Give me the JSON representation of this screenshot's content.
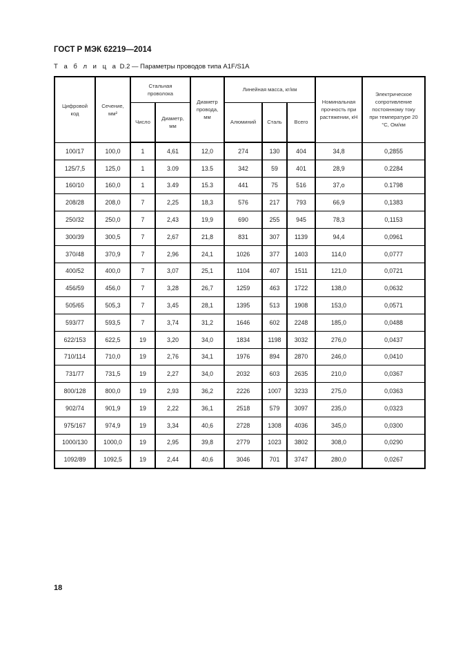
{
  "header": {
    "doc_title": "ГОСТ Р МЭК 62219—2014"
  },
  "caption": {
    "prefix": "Т а б л и ц а",
    "text": " D.2 — Параметры проводов типа A1F/S1A"
  },
  "table": {
    "headers": {
      "code": "Цифровой код",
      "section": "Сечение, мм²",
      "steel_wire": "Стальная проволока",
      "steel_count": "Число",
      "steel_diameter": "Диаметр, мм",
      "wire_diameter": "Диаметр провода, мм",
      "linear_mass": "Линейная масса, кг/км",
      "mass_aluminum": "Алюминий",
      "mass_steel": "Сталь",
      "mass_total": "Всего",
      "strength": "Номинальная прочность при растяжении, кН",
      "resistance": "Электрическое сопротивление постоянному току при температуре 20 °С, Ом/км"
    },
    "rows": [
      [
        "100/17",
        "100,0",
        "1",
        "4,61",
        "12,0",
        "274",
        "130",
        "404",
        "34,8",
        "0,2855"
      ],
      [
        "125/7,5",
        "125,0",
        "1",
        "3.09",
        "13.5",
        "342",
        "59",
        "401",
        "28,9",
        "0.2284"
      ],
      [
        "160/10",
        "160,0",
        "1",
        "3.49",
        "15.3",
        "441",
        "75",
        "516",
        "37,o",
        "0.1798"
      ],
      [
        "208/28",
        "208,0",
        "7",
        "2,25",
        "18,3",
        "576",
        "217",
        "793",
        "66,9",
        "0,1383"
      ],
      [
        "250/32",
        "250,0",
        "7",
        "2,43",
        "19,9",
        "690",
        "255",
        "945",
        "78,3",
        "0,1153"
      ],
      [
        "300/39",
        "300,5",
        "7",
        "2,67",
        "21,8",
        "831",
        "307",
        "1139",
        "94,4",
        "0,0961"
      ],
      [
        "370/48",
        "370,9",
        "7",
        "2,96",
        "24,1",
        "1026",
        "377",
        "1403",
        "114,0",
        "0,0777"
      ],
      [
        "400/52",
        "400,0",
        "7",
        "3,07",
        "25,1",
        "1104",
        "407",
        "1511",
        "121,0",
        "0,0721"
      ],
      [
        "456/59",
        "456,0",
        "7",
        "3,28",
        "26,7",
        "1259",
        "463",
        "1722",
        "138,0",
        "0,0632"
      ],
      [
        "505/65",
        "505,3",
        "7",
        "3,45",
        "28,1",
        "1395",
        "513",
        "1908",
        "153,0",
        "0,0571"
      ],
      [
        "593/77",
        "593,5",
        "7",
        "3,74",
        "31,2",
        "1646",
        "602",
        "2248",
        "185,0",
        "0,0488"
      ],
      [
        "622/153",
        "622,5",
        "19",
        "3,20",
        "34,0",
        "1834",
        "1198",
        "3032",
        "276,0",
        "0,0437"
      ],
      [
        "710/114",
        "710,0",
        "19",
        "2,76",
        "34,1",
        "1976",
        "894",
        "2870",
        "246,0",
        "0,0410"
      ],
      [
        "731/77",
        "731,5",
        "19",
        "2,27",
        "34,0",
        "2032",
        "603",
        "2635",
        "210,0",
        "0,0367"
      ],
      [
        "800/128",
        "800,0",
        "19",
        "2,93",
        "36,2",
        "2226",
        "1007",
        "3233",
        "275,0",
        "0,0363"
      ],
      [
        "902/74",
        "901,9",
        "19",
        "2,22",
        "36,1",
        "2518",
        "579",
        "3097",
        "235,0",
        "0,0323"
      ],
      [
        "975/167",
        "974,9",
        "19",
        "3,34",
        "40,6",
        "2728",
        "1308",
        "4036",
        "345,0",
        "0,0300"
      ],
      [
        "1000/130",
        "1000,0",
        "19",
        "2,95",
        "39,8",
        "2779",
        "1023",
        "3802",
        "308,0",
        "0,0290"
      ],
      [
        "1092/89",
        "1092,5",
        "19",
        "2,44",
        "40,6",
        "3046",
        "701",
        "3747",
        "280,0",
        "0,0267"
      ]
    ]
  },
  "footer": {
    "page_number": "18"
  }
}
